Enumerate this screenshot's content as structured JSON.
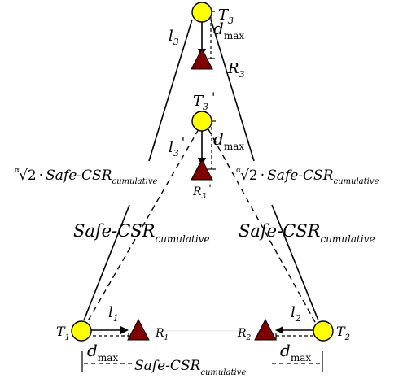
{
  "colors": {
    "transmitter": "#ffff00",
    "receiver": "#800000",
    "line": "#000000",
    "background": "#ffffff"
  },
  "nodes": {
    "T3": {
      "base": "T",
      "sub": "3",
      "prime": ""
    },
    "T3p": {
      "base": "T",
      "sub": "3",
      "prime": "'"
    },
    "T1": {
      "base": "T",
      "sub": "1",
      "prime": ""
    },
    "T2": {
      "base": "T",
      "sub": "2",
      "prime": ""
    },
    "R3": {
      "base": "R",
      "sub": "3",
      "prime": ""
    },
    "R3p": {
      "base": "R",
      "sub": "3",
      "prime": "'"
    },
    "R1": {
      "base": "R",
      "sub": "1",
      "prime": ""
    },
    "R2": {
      "base": "R",
      "sub": "2",
      "prime": ""
    }
  },
  "links": {
    "l3": {
      "base": "l",
      "sub": "3",
      "prime": ""
    },
    "l3p": {
      "base": "l",
      "sub": "3",
      "prime": "'"
    },
    "l1": {
      "base": "l",
      "sub": "1",
      "prime": ""
    },
    "l2": {
      "base": "l",
      "sub": "2",
      "prime": ""
    }
  },
  "dmax": {
    "base": "d",
    "sub": "max"
  },
  "safe_csr": {
    "main": "Safe-CSR",
    "sub": "cumulative"
  },
  "root_factor": {
    "index": "α",
    "radicand": "2",
    "dot": "·"
  }
}
